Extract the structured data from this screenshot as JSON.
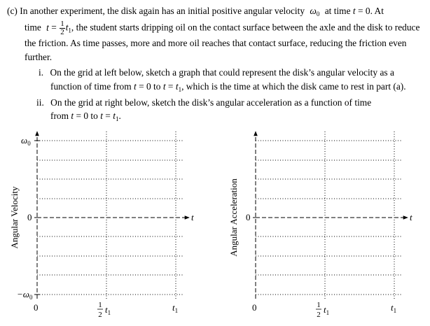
{
  "part_c": {
    "label": "(c)",
    "l1a": "In another experiment, the disk again has an initial positive angular velocity",
    "omega": "ω",
    "sub0": "0",
    "l1b": "at time",
    "t": "t",
    "eq0": "= 0. At",
    "time_word": "time",
    "eq": "=",
    "half_num": "1",
    "half_den": "2",
    "sub1": "1",
    "l2b": ", the student starts dripping oil on the contact surface between the axle and the disk to reduce",
    "l3": "the friction. As time passes, more and more oil reaches that contact surface, reducing the friction even",
    "l4": "further."
  },
  "item_i": {
    "label": "i.",
    "l1": "On the grid at left below, sketch a graph that could represent the disk’s angular velocity as a",
    "l2a": "function of time from",
    "eq0": "= 0 to",
    "l2b": ", which is the time at which the disk came to rest in part (a)."
  },
  "item_ii": {
    "label": "ii.",
    "l1": "On the grid at right below, sketch the disk’s angular acceleration as a function of time",
    "from": "from",
    "eq0": "= 0 to",
    "period": "."
  },
  "graph_left": {
    "ylabel": "Angular Velocity",
    "y_top": "ω",
    "y_top_sub": "0",
    "y_mid": "0",
    "y_bot": "−ω",
    "y_bot_sub": "0",
    "x_zero": "0",
    "x_half_num": "1",
    "x_half_den": "2",
    "x_t": "t",
    "x_sub": "1",
    "axis_t": "t"
  },
  "graph_right": {
    "ylabel": "Angular Acceleration",
    "y_mid": "0",
    "x_zero": "0",
    "x_half_num": "1",
    "x_half_den": "2",
    "x_t": "t",
    "x_sub": "1",
    "axis_t": "t"
  }
}
